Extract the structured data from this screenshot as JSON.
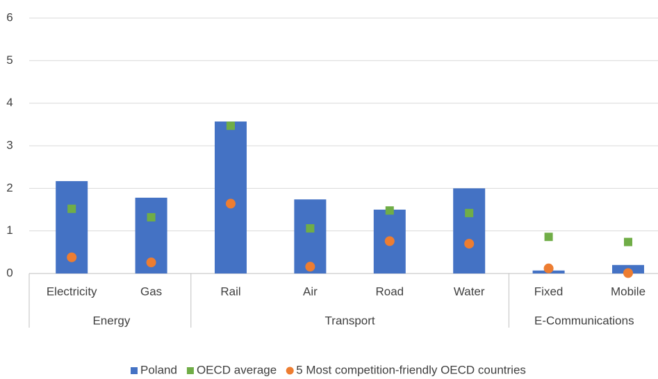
{
  "chart_data": {
    "type": "bar",
    "categories": [
      "Electricity",
      "Gas",
      "Rail",
      "Air",
      "Road",
      "Water",
      "Fixed",
      "Mobile"
    ],
    "groups": [
      {
        "name": "Energy",
        "size": 2
      },
      {
        "name": "Transport",
        "size": 4
      },
      {
        "name": "E-Communications",
        "size": 2
      }
    ],
    "series": [
      {
        "name": "Poland",
        "color": "#4472c4",
        "marker": "bar",
        "values": [
          2.17,
          1.78,
          3.57,
          1.74,
          1.5,
          2.0,
          0.07,
          0.2
        ]
      },
      {
        "name": "OECD average",
        "color": "#70ad47",
        "marker": "square",
        "values": [
          1.52,
          1.32,
          3.47,
          1.06,
          1.48,
          1.42,
          0.86,
          0.74
        ]
      },
      {
        "name": "5 Most competition-friendly OECD countries",
        "color": "#ed7d31",
        "marker": "circle",
        "values": [
          0.38,
          0.26,
          1.64,
          0.16,
          0.76,
          0.7,
          0.12,
          0.01
        ]
      }
    ],
    "ylim": [
      0,
      6
    ],
    "yticks": [
      0,
      1,
      2,
      3,
      4,
      5,
      6
    ],
    "grid": true,
    "legend": "bottom"
  }
}
